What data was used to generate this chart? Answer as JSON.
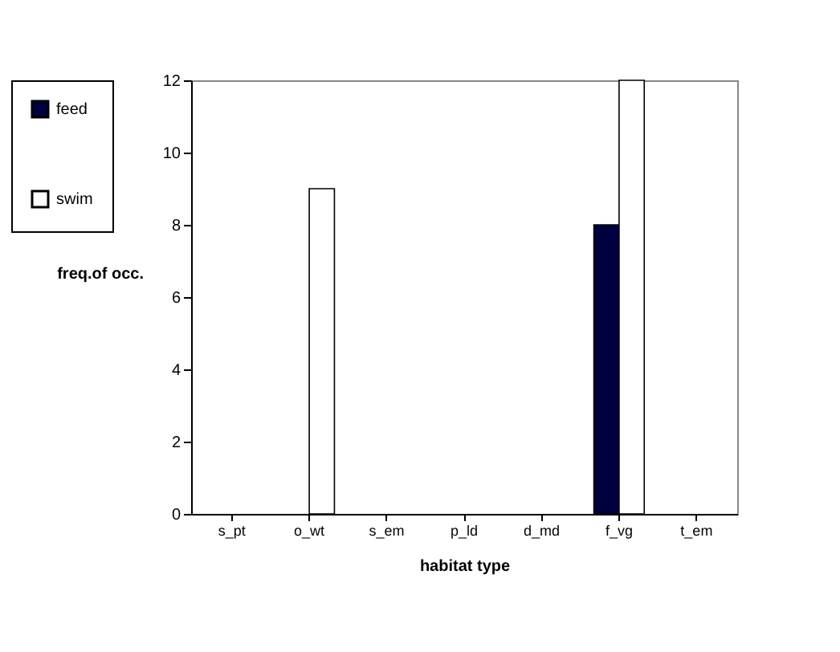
{
  "chart_data": {
    "type": "bar",
    "xlabel": "habitat type",
    "ylabel": "freq.of occ.",
    "categories": [
      "s_pt",
      "o_wt",
      "s_em",
      "p_ld",
      "d_md",
      "f_vg",
      "t_em"
    ],
    "series": [
      {
        "name": "feed",
        "color": "#000040",
        "values": [
          0,
          0,
          0,
          0,
          0,
          8,
          0
        ]
      },
      {
        "name": "swim",
        "color": "#ffffff",
        "values": [
          0,
          9,
          0,
          0,
          0,
          12,
          0
        ]
      }
    ],
    "ylim": [
      0,
      12
    ],
    "yticks": [
      0,
      2,
      4,
      6,
      8,
      10,
      12
    ],
    "legend": "top left"
  }
}
